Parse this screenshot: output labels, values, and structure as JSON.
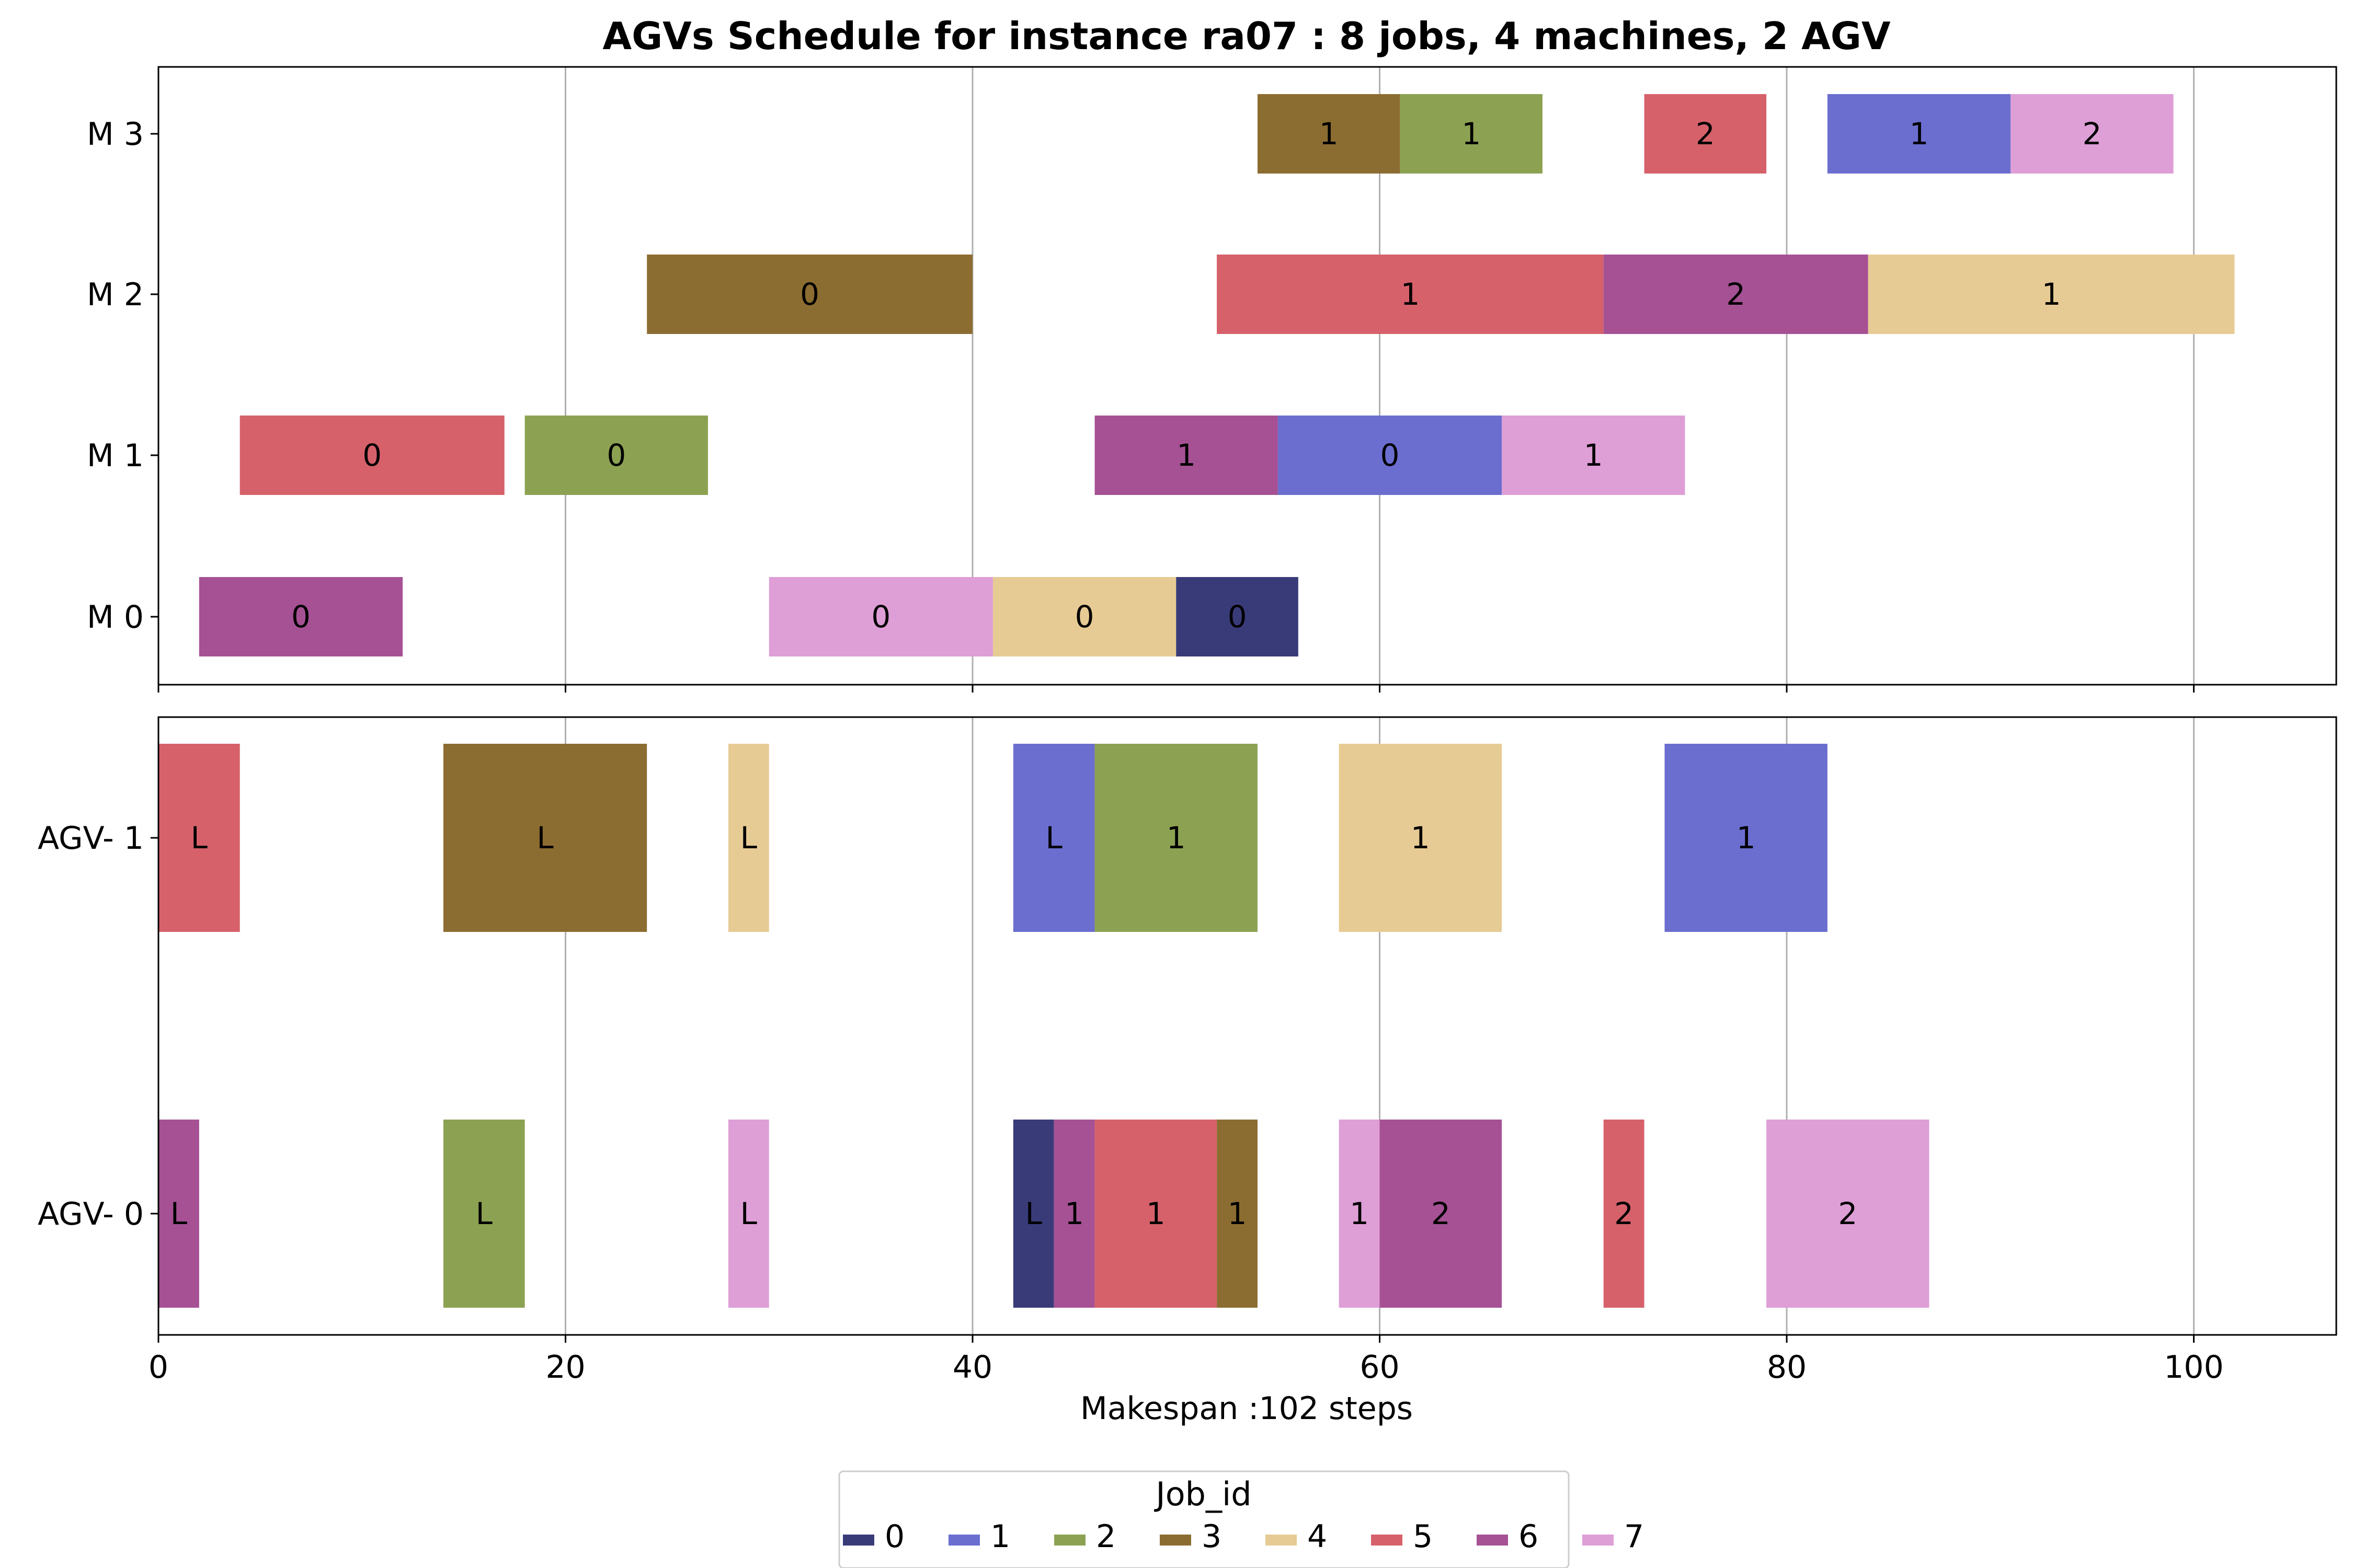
{
  "chart_data": {
    "type": "gantt",
    "title": "AGVs Schedule for instance ra07  : 8 jobs, 4 machines, 2 AGV",
    "xlabel": "Makespan :102 steps",
    "xlim": [
      0,
      107
    ],
    "xticks": [
      0,
      20,
      40,
      60,
      80,
      100
    ],
    "xtick_labels": [
      "0",
      "20",
      "40",
      "60",
      "80",
      "100"
    ],
    "grid": true,
    "legend": {
      "title": "Job_id",
      "placement": "bottom-center",
      "labels": [
        "0",
        "1",
        "2",
        "3",
        "4",
        "5",
        "6",
        "7"
      ]
    },
    "job_colors": [
      "#393b79",
      "#6b6ecf",
      "#8ca252",
      "#8c6d31",
      "#e7cb94",
      "#d6616b",
      "#a55194",
      "#de9ed6"
    ],
    "machine_panel": {
      "rows": [
        "M 0",
        "M 1",
        "M 2",
        "M 3"
      ],
      "tasks": [
        {
          "row": 3,
          "job": 3,
          "start": 54,
          "end": 61,
          "label": "1"
        },
        {
          "row": 3,
          "job": 2,
          "start": 61,
          "end": 68,
          "label": "1"
        },
        {
          "row": 3,
          "job": 5,
          "start": 73,
          "end": 79,
          "label": "2"
        },
        {
          "row": 3,
          "job": 1,
          "start": 82,
          "end": 91,
          "label": "1"
        },
        {
          "row": 3,
          "job": 7,
          "start": 91,
          "end": 99,
          "label": "2"
        },
        {
          "row": 2,
          "job": 3,
          "start": 24,
          "end": 40,
          "label": "0"
        },
        {
          "row": 2,
          "job": 5,
          "start": 52,
          "end": 71,
          "label": "1"
        },
        {
          "row": 2,
          "job": 6,
          "start": 71,
          "end": 84,
          "label": "2"
        },
        {
          "row": 2,
          "job": 4,
          "start": 84,
          "end": 102,
          "label": "1"
        },
        {
          "row": 1,
          "job": 5,
          "start": 4,
          "end": 17,
          "label": "0"
        },
        {
          "row": 1,
          "job": 2,
          "start": 18,
          "end": 27,
          "label": "0"
        },
        {
          "row": 1,
          "job": 6,
          "start": 46,
          "end": 55,
          "label": "1"
        },
        {
          "row": 1,
          "job": 1,
          "start": 55,
          "end": 66,
          "label": "0"
        },
        {
          "row": 1,
          "job": 7,
          "start": 66,
          "end": 75,
          "label": "1"
        },
        {
          "row": 0,
          "job": 6,
          "start": 2,
          "end": 12,
          "label": "0"
        },
        {
          "row": 0,
          "job": 7,
          "start": 30,
          "end": 41,
          "label": "0"
        },
        {
          "row": 0,
          "job": 4,
          "start": 41,
          "end": 50,
          "label": "0"
        },
        {
          "row": 0,
          "job": 0,
          "start": 50,
          "end": 56,
          "label": "0"
        }
      ]
    },
    "agv_panel": {
      "rows": [
        "AGV- 0",
        "AGV- 1"
      ],
      "tasks": [
        {
          "row": 1,
          "job": 5,
          "start": 0,
          "end": 4,
          "label": "L"
        },
        {
          "row": 1,
          "job": 3,
          "start": 14,
          "end": 24,
          "label": "L"
        },
        {
          "row": 1,
          "job": 4,
          "start": 28,
          "end": 30,
          "label": "L"
        },
        {
          "row": 1,
          "job": 1,
          "start": 42,
          "end": 46,
          "label": "L"
        },
        {
          "row": 1,
          "job": 2,
          "start": 46,
          "end": 54,
          "label": "1"
        },
        {
          "row": 1,
          "job": 4,
          "start": 58,
          "end": 66,
          "label": "1"
        },
        {
          "row": 1,
          "job": 1,
          "start": 74,
          "end": 82,
          "label": "1"
        },
        {
          "row": 0,
          "job": 6,
          "start": 0,
          "end": 2,
          "label": "L"
        },
        {
          "row": 0,
          "job": 2,
          "start": 14,
          "end": 18,
          "label": "L"
        },
        {
          "row": 0,
          "job": 7,
          "start": 28,
          "end": 30,
          "label": "L"
        },
        {
          "row": 0,
          "job": 0,
          "start": 42,
          "end": 44,
          "label": "L"
        },
        {
          "row": 0,
          "job": 6,
          "start": 44,
          "end": 46,
          "label": "1"
        },
        {
          "row": 0,
          "job": 5,
          "start": 46,
          "end": 52,
          "label": "1"
        },
        {
          "row": 0,
          "job": 3,
          "start": 52,
          "end": 54,
          "label": "1"
        },
        {
          "row": 0,
          "job": 7,
          "start": 58,
          "end": 60,
          "label": "1"
        },
        {
          "row": 0,
          "job": 6,
          "start": 60,
          "end": 66,
          "label": "2"
        },
        {
          "row": 0,
          "job": 5,
          "start": 71,
          "end": 73,
          "label": "2"
        },
        {
          "row": 0,
          "job": 7,
          "start": 79,
          "end": 87,
          "label": "2"
        }
      ]
    }
  }
}
